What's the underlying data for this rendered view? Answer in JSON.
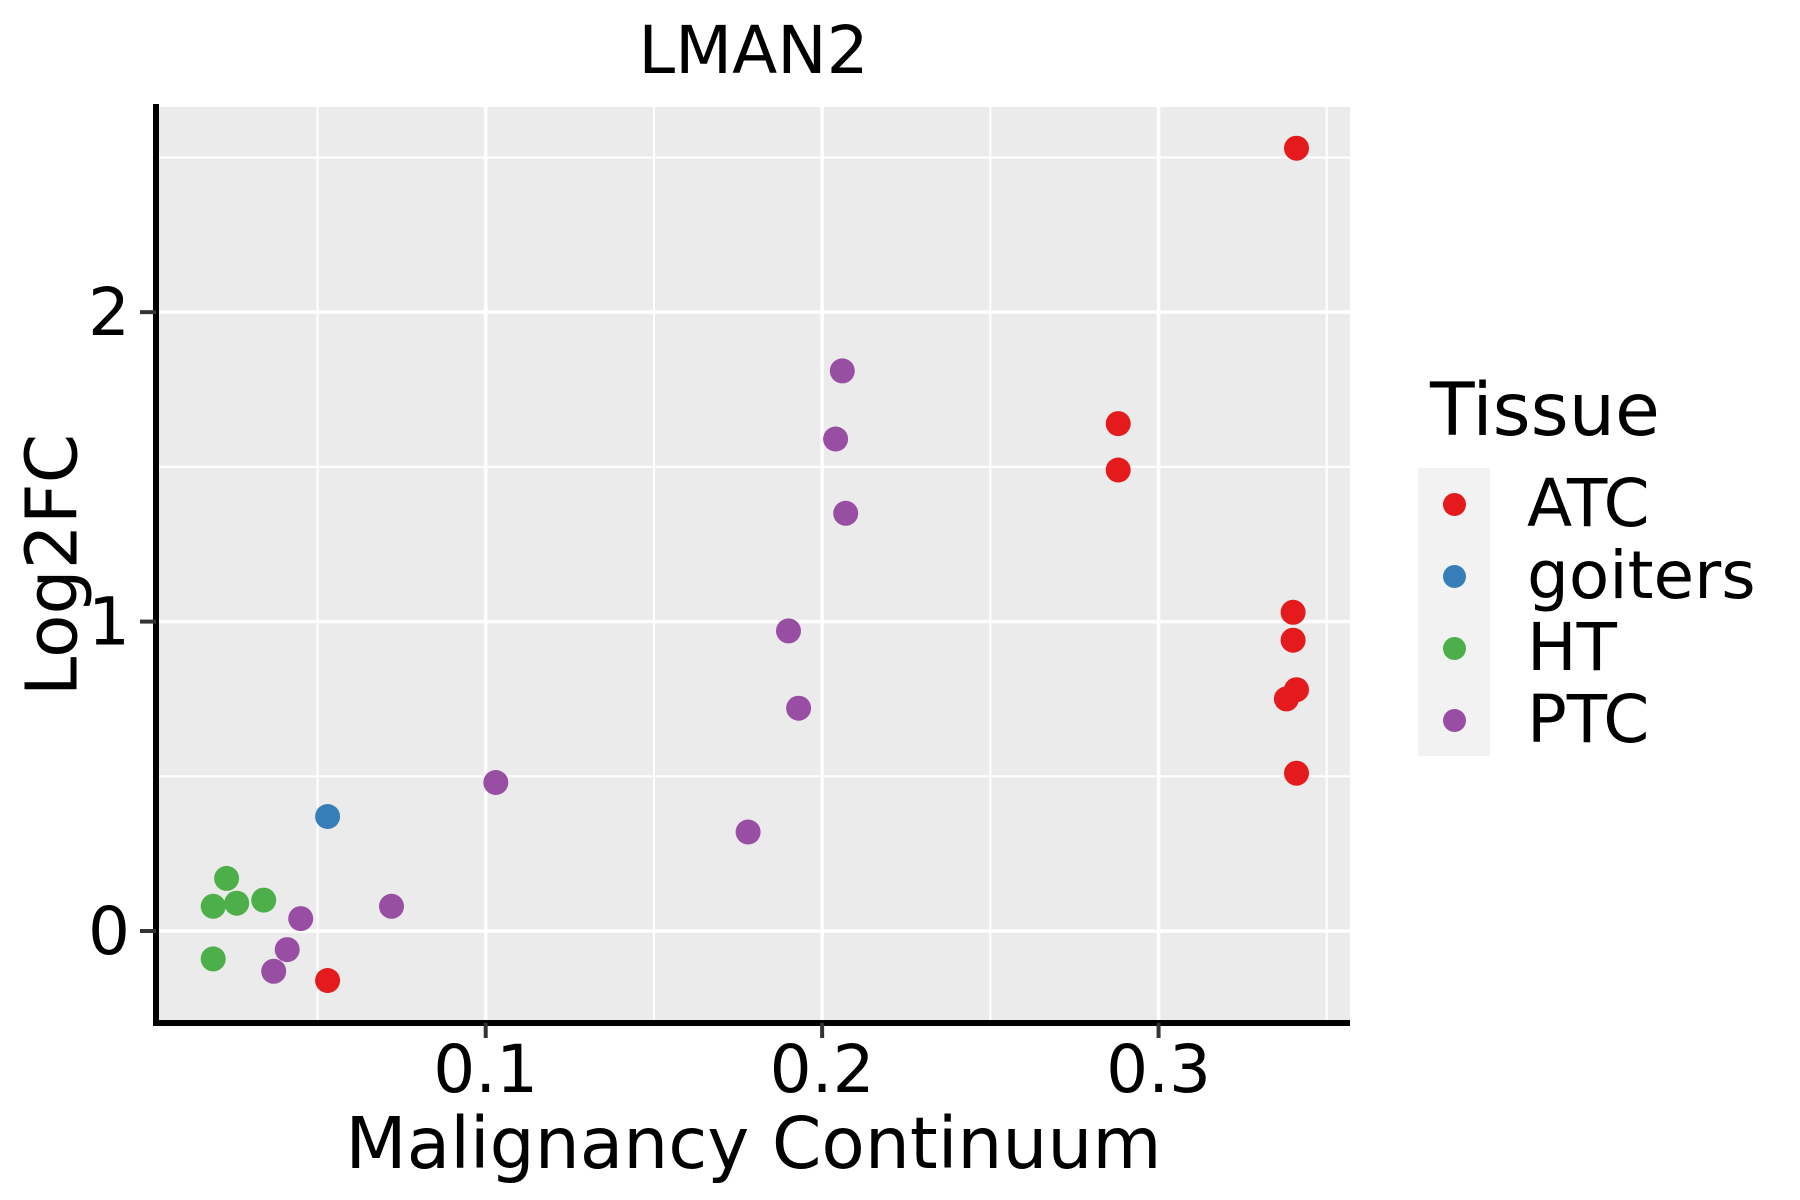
{
  "title": "LMAN2",
  "chart_data": {
    "type": "scatter",
    "title": "LMAN2",
    "xlabel": "Malignancy Continuum",
    "ylabel": "Log2FC",
    "xlim": [
      0.0023,
      0.3569
    ],
    "ylim": [
      -0.294,
      2.663
    ],
    "x_ticks": [
      0.1,
      0.2,
      0.3
    ],
    "x_tick_labels": [
      "0.1",
      "0.2",
      "0.3"
    ],
    "x_minor_ticks": [
      0.05,
      0.15,
      0.25,
      0.35
    ],
    "y_ticks": [
      0,
      1,
      2
    ],
    "y_tick_labels": [
      "0",
      "1",
      "2"
    ],
    "y_minor_ticks": [
      0.5,
      1.5,
      2.5
    ],
    "grid": true,
    "legend_position": "right",
    "series": [
      {
        "name": "ATC",
        "color": "#E41A1C",
        "points": [
          [
            0.341,
            2.53
          ],
          [
            0.288,
            1.64
          ],
          [
            0.288,
            1.49
          ],
          [
            0.34,
            1.03
          ],
          [
            0.34,
            0.94
          ],
          [
            0.338,
            0.75
          ],
          [
            0.341,
            0.78
          ],
          [
            0.341,
            0.51
          ],
          [
            0.053,
            -0.16
          ]
        ]
      },
      {
        "name": "goiters",
        "color": "#377EB8",
        "points": [
          [
            0.053,
            0.37
          ]
        ]
      },
      {
        "name": "HT",
        "color": "#4DAF4A",
        "points": [
          [
            0.023,
            0.17
          ],
          [
            0.019,
            0.08
          ],
          [
            0.026,
            0.09
          ],
          [
            0.034,
            0.1
          ],
          [
            0.019,
            -0.09
          ]
        ]
      },
      {
        "name": "PTC",
        "color": "#984EA3",
        "points": [
          [
            0.045,
            0.04
          ],
          [
            0.041,
            -0.06
          ],
          [
            0.037,
            -0.13
          ],
          [
            0.072,
            0.08
          ],
          [
            0.103,
            0.48
          ],
          [
            0.178,
            0.32
          ],
          [
            0.19,
            0.97
          ],
          [
            0.193,
            0.72
          ],
          [
            0.206,
            1.81
          ],
          [
            0.204,
            1.59
          ],
          [
            0.207,
            1.35
          ]
        ]
      }
    ]
  },
  "legend": {
    "title": "Tissue",
    "items": [
      {
        "label": "ATC",
        "color": "#E41A1C"
      },
      {
        "label": "goiters",
        "color": "#377EB8"
      },
      {
        "label": "HT",
        "color": "#4DAF4A"
      },
      {
        "label": "PTC",
        "color": "#984EA3"
      }
    ]
  },
  "colors": {
    "background": "#FFFFFF",
    "panel_bg": "#EBEBEB",
    "grid": "#FFFFFF",
    "axis_line": "#000000",
    "tick_mark": "#333333",
    "text": "#000000",
    "legend_key_bg": "#F2F2F2"
  }
}
